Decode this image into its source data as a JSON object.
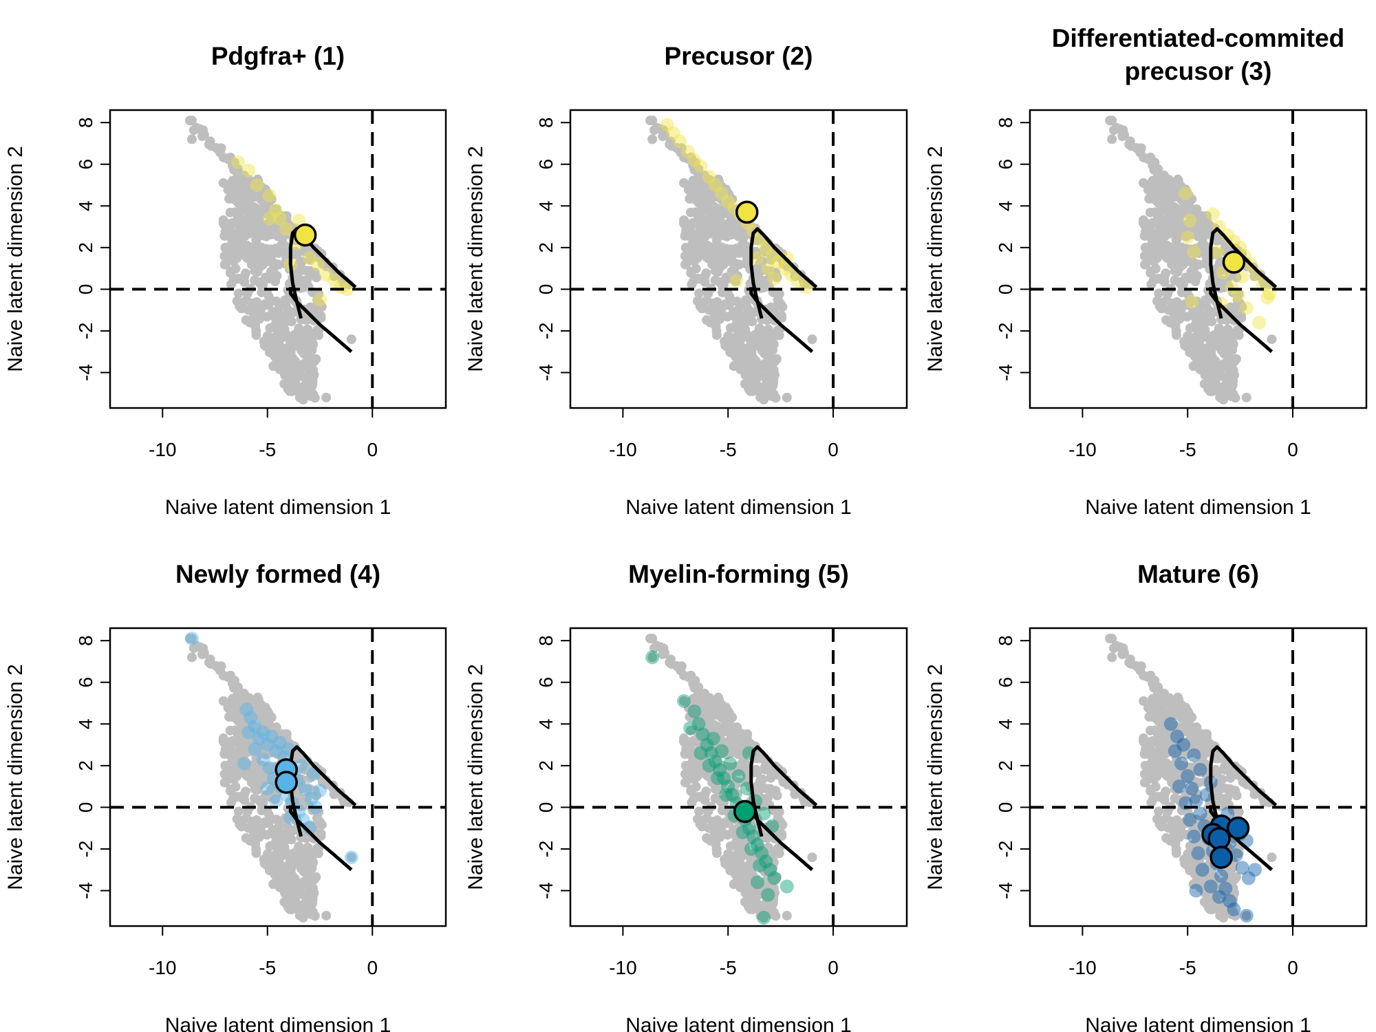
{
  "figure": {
    "xlabel": "Naive latent dimension 1",
    "ylabel": "Naive latent dimension 2",
    "background_color": "#bebebe",
    "curve_color": "#000000"
  },
  "chart_data": [
    {
      "type": "scatter",
      "title": "Pdgfra+ (1)",
      "xlabel": "Naive latent dimension 1",
      "ylabel": "Naive latent dimension 2",
      "xlim": [
        -12.5,
        3.5
      ],
      "ylim": [
        -5.7,
        8.6
      ],
      "xticks": [
        -10,
        -5,
        0
      ],
      "yticks": [
        -4,
        -2,
        0,
        2,
        4,
        6,
        8
      ],
      "reference_lines": {
        "x": 0,
        "y": 0,
        "style": "dashed"
      },
      "grid": false,
      "color": "#f0e442",
      "highlight_points": [
        [
          -6.4,
          6.1
        ],
        [
          -5.9,
          5.7
        ],
        [
          -5.5,
          5.0
        ],
        [
          -4.9,
          4.5
        ],
        [
          -4.6,
          3.8
        ],
        [
          -4.4,
          3.4
        ],
        [
          -4.1,
          2.9
        ],
        [
          -3.6,
          2.2
        ],
        [
          -3.0,
          1.5
        ],
        [
          -2.6,
          1.2
        ],
        [
          -2.2,
          0.7
        ],
        [
          -1.8,
          0.4
        ],
        [
          -1.5,
          0.1
        ],
        [
          -4.9,
          3.4
        ],
        [
          -3.5,
          3.3
        ],
        [
          -2.5,
          -0.5
        ],
        [
          -1.2,
          0.0
        ],
        [
          -3.9,
          1.2
        ]
      ],
      "centroids": [
        [
          -3.2,
          2.6
        ]
      ]
    },
    {
      "type": "scatter",
      "title": "Precusor (2)",
      "xlabel": "Naive latent dimension 1",
      "ylabel": "Naive latent dimension 2",
      "xlim": [
        -12.5,
        3.5
      ],
      "ylim": [
        -5.7,
        8.6
      ],
      "xticks": [
        -10,
        -5,
        0
      ],
      "yticks": [
        -4,
        -2,
        0,
        2,
        4,
        6,
        8
      ],
      "reference_lines": {
        "x": 0,
        "y": 0,
        "style": "dashed"
      },
      "grid": false,
      "color": "#f0e442",
      "highlight_points": [
        [
          -7.9,
          7.9
        ],
        [
          -7.6,
          7.5
        ],
        [
          -7.3,
          7.1
        ],
        [
          -6.9,
          6.6
        ],
        [
          -6.6,
          6.2
        ],
        [
          -6.3,
          5.9
        ],
        [
          -5.9,
          5.4
        ],
        [
          -5.6,
          5.0
        ],
        [
          -5.3,
          4.6
        ],
        [
          -5.0,
          4.2
        ],
        [
          -4.7,
          3.9
        ],
        [
          -4.4,
          3.6
        ],
        [
          -4.1,
          3.2
        ],
        [
          -3.8,
          2.8
        ],
        [
          -3.5,
          2.4
        ],
        [
          -3.2,
          2.0
        ],
        [
          -2.9,
          1.6
        ],
        [
          -2.6,
          1.3
        ],
        [
          -2.3,
          1.0
        ],
        [
          -2.0,
          0.7
        ],
        [
          -1.7,
          0.4
        ],
        [
          -1.3,
          0.1
        ],
        [
          -3.1,
          1.0
        ],
        [
          -2.8,
          0.5
        ],
        [
          -4.6,
          0.4
        ],
        [
          -2.2,
          1.5
        ],
        [
          -3.6,
          1.5
        ]
      ],
      "centroids": [
        [
          -4.1,
          3.7
        ]
      ]
    },
    {
      "type": "scatter",
      "title": "Differentiated-commited precusor (3)",
      "xlabel": "Naive latent dimension 1",
      "ylabel": "Naive latent dimension 2",
      "xlim": [
        -12.5,
        3.5
      ],
      "ylim": [
        -5.7,
        8.6
      ],
      "xticks": [
        -10,
        -5,
        0
      ],
      "yticks": [
        -4,
        -2,
        0,
        2,
        4,
        6,
        8
      ],
      "reference_lines": {
        "x": 0,
        "y": 0,
        "style": "dashed"
      },
      "grid": false,
      "color": "#f0e442",
      "highlight_points": [
        [
          -5.1,
          4.6
        ],
        [
          -4.9,
          3.3
        ],
        [
          -5.0,
          2.5
        ],
        [
          -4.7,
          1.8
        ],
        [
          -3.8,
          3.6
        ],
        [
          -3.5,
          3.0
        ],
        [
          -3.1,
          2.6
        ],
        [
          -2.8,
          2.3
        ],
        [
          -2.5,
          2.0
        ],
        [
          -2.3,
          1.6
        ],
        [
          -2.0,
          1.2
        ],
        [
          -1.7,
          0.7
        ],
        [
          -1.4,
          0.2
        ],
        [
          -1.2,
          -0.4
        ],
        [
          -2.4,
          0.6
        ],
        [
          -2.9,
          0.1
        ],
        [
          -3.3,
          0.8
        ],
        [
          -3.6,
          1.8
        ],
        [
          -2.2,
          -0.9
        ],
        [
          -1.6,
          -1.6
        ],
        [
          -4.8,
          -0.6
        ],
        [
          -1.1,
          -0.2
        ],
        [
          -3.0,
          1.4
        ],
        [
          -2.6,
          -0.3
        ],
        [
          -3.4,
          -0.7
        ]
      ],
      "centroids": [
        [
          -2.8,
          1.3
        ]
      ]
    },
    {
      "type": "scatter",
      "title": "Newly formed (4)",
      "xlabel": "Naive latent dimension 1",
      "ylabel": "Naive latent dimension 2",
      "xlim": [
        -12.5,
        3.5
      ],
      "ylim": [
        -5.7,
        8.6
      ],
      "xticks": [
        -10,
        -5,
        0
      ],
      "yticks": [
        -4,
        -2,
        0,
        2,
        4,
        6,
        8
      ],
      "reference_lines": {
        "x": 0,
        "y": 0,
        "style": "dashed"
      },
      "grid": false,
      "color": "#56b4e9",
      "highlight_points": [
        [
          -8.6,
          8.1
        ],
        [
          -6.0,
          4.7
        ],
        [
          -5.8,
          4.3
        ],
        [
          -5.9,
          3.6
        ],
        [
          -5.6,
          3.9
        ],
        [
          -5.4,
          3.3
        ],
        [
          -5.2,
          3.6
        ],
        [
          -5.0,
          3.0
        ],
        [
          -4.8,
          3.4
        ],
        [
          -4.6,
          2.7
        ],
        [
          -4.4,
          3.1
        ],
        [
          -4.2,
          2.4
        ],
        [
          -4.0,
          2.8
        ],
        [
          -5.6,
          2.8
        ],
        [
          -5.2,
          2.3
        ],
        [
          -4.9,
          1.9
        ],
        [
          -4.7,
          1.4
        ],
        [
          -4.4,
          1.0
        ],
        [
          -4.1,
          0.6
        ],
        [
          -3.8,
          0.2
        ],
        [
          -3.5,
          -0.2
        ],
        [
          -3.3,
          -0.6
        ],
        [
          -3.0,
          -1.0
        ],
        [
          -3.6,
          1.3
        ],
        [
          -3.2,
          0.9
        ],
        [
          -2.9,
          0.4
        ],
        [
          -2.7,
          0.0
        ],
        [
          -2.8,
          1.6
        ],
        [
          -2.5,
          0.8
        ],
        [
          -3.9,
          -0.5
        ],
        [
          -4.6,
          0.3
        ],
        [
          -5.0,
          0.9
        ],
        [
          -1.0,
          -2.4
        ],
        [
          -6.1,
          2.1
        ],
        [
          -3.4,
          2.0
        ],
        [
          -4.3,
          1.7
        ]
      ],
      "centroids": [
        [
          -4.1,
          1.8
        ],
        [
          -4.1,
          1.2
        ]
      ]
    },
    {
      "type": "scatter",
      "title": "Myelin-forming (5)",
      "xlabel": "Naive latent dimension 1",
      "ylabel": "Naive latent dimension 2",
      "xlim": [
        -12.5,
        3.5
      ],
      "ylim": [
        -5.7,
        8.6
      ],
      "xticks": [
        -10,
        -5,
        0
      ],
      "yticks": [
        -4,
        -2,
        0,
        2,
        4,
        6,
        8
      ],
      "reference_lines": {
        "x": 0,
        "y": 0,
        "style": "dashed"
      },
      "grid": false,
      "color": "#009e73",
      "highlight_points": [
        [
          -8.6,
          7.2
        ],
        [
          -7.1,
          5.1
        ],
        [
          -6.6,
          4.6
        ],
        [
          -6.4,
          4.0
        ],
        [
          -6.2,
          3.5
        ],
        [
          -6.0,
          3.0
        ],
        [
          -5.8,
          2.6
        ],
        [
          -5.6,
          2.2
        ],
        [
          -5.4,
          1.8
        ],
        [
          -5.2,
          1.4
        ],
        [
          -5.0,
          1.0
        ],
        [
          -4.8,
          0.6
        ],
        [
          -4.6,
          0.2
        ],
        [
          -4.4,
          -0.2
        ],
        [
          -4.2,
          -0.6
        ],
        [
          -4.0,
          -1.0
        ],
        [
          -3.8,
          -1.4
        ],
        [
          -3.6,
          -1.8
        ],
        [
          -3.4,
          -2.2
        ],
        [
          -3.2,
          -2.6
        ],
        [
          -3.0,
          -3.0
        ],
        [
          -2.8,
          -3.4
        ],
        [
          -5.9,
          2.0
        ],
        [
          -5.5,
          1.4
        ],
        [
          -5.1,
          0.6
        ],
        [
          -4.7,
          -0.4
        ],
        [
          -4.3,
          -1.2
        ],
        [
          -3.9,
          -2.0
        ],
        [
          -3.5,
          -2.8
        ],
        [
          -6.3,
          2.6
        ],
        [
          -5.7,
          3.3
        ],
        [
          -5.3,
          2.7
        ],
        [
          -4.9,
          2.1
        ],
        [
          -4.5,
          1.5
        ],
        [
          -4.1,
          0.9
        ],
        [
          -3.7,
          0.3
        ],
        [
          -3.3,
          -0.3
        ],
        [
          -2.9,
          -0.9
        ],
        [
          -3.1,
          -4.2
        ],
        [
          -3.3,
          -5.3
        ],
        [
          -2.2,
          -3.8
        ],
        [
          -6.8,
          3.8
        ],
        [
          -4.0,
          2.6
        ],
        [
          -3.6,
          -3.6
        ]
      ],
      "centroids": [
        [
          -4.2,
          -0.2
        ]
      ]
    },
    {
      "type": "scatter",
      "title": "Mature (6)",
      "xlabel": "Naive latent dimension 1",
      "ylabel": "Naive latent dimension 2",
      "xlim": [
        -12.5,
        3.5
      ],
      "ylim": [
        -5.7,
        8.6
      ],
      "xticks": [
        -10,
        -5,
        0
      ],
      "yticks": [
        -4,
        -2,
        0,
        2,
        4,
        6,
        8
      ],
      "reference_lines": {
        "x": 0,
        "y": 0,
        "style": "dashed"
      },
      "grid": false,
      "color": "#0a5ea8",
      "highlight_points": [
        [
          -5.8,
          4.0
        ],
        [
          -5.5,
          3.4
        ],
        [
          -5.6,
          2.7
        ],
        [
          -5.3,
          2.1
        ],
        [
          -5.0,
          1.5
        ],
        [
          -4.8,
          0.9
        ],
        [
          -4.6,
          0.3
        ],
        [
          -4.4,
          -0.3
        ],
        [
          -4.2,
          -0.9
        ],
        [
          -4.0,
          -1.5
        ],
        [
          -3.8,
          -2.1
        ],
        [
          -3.6,
          -2.7
        ],
        [
          -3.4,
          -3.3
        ],
        [
          -3.2,
          -3.9
        ],
        [
          -3.0,
          -4.5
        ],
        [
          -2.8,
          -4.9
        ],
        [
          -5.4,
          1.0
        ],
        [
          -5.1,
          0.2
        ],
        [
          -4.9,
          -0.6
        ],
        [
          -4.7,
          -1.4
        ],
        [
          -4.5,
          -2.2
        ],
        [
          -4.3,
          -3.0
        ],
        [
          -3.9,
          -3.8
        ],
        [
          -3.5,
          -4.3
        ],
        [
          -3.3,
          -1.0
        ],
        [
          -3.0,
          -1.7
        ],
        [
          -2.7,
          -2.3
        ],
        [
          -2.4,
          -2.9
        ],
        [
          -2.1,
          -3.4
        ],
        [
          -1.8,
          -3.0
        ],
        [
          -2.2,
          -1.6
        ],
        [
          -2.6,
          -0.9
        ],
        [
          -3.1,
          -0.3
        ],
        [
          -4.1,
          0.6
        ],
        [
          -4.4,
          1.8
        ],
        [
          -4.7,
          2.5
        ],
        [
          -3.9,
          1.2
        ],
        [
          -5.2,
          3.0
        ],
        [
          -2.2,
          -5.2
        ],
        [
          -4.6,
          -4.0
        ]
      ],
      "centroids": [
        [
          -3.4,
          -0.9
        ],
        [
          -3.8,
          -1.3
        ],
        [
          -2.6,
          -1.0
        ],
        [
          -3.5,
          -1.5
        ],
        [
          -3.4,
          -2.4
        ]
      ]
    }
  ]
}
